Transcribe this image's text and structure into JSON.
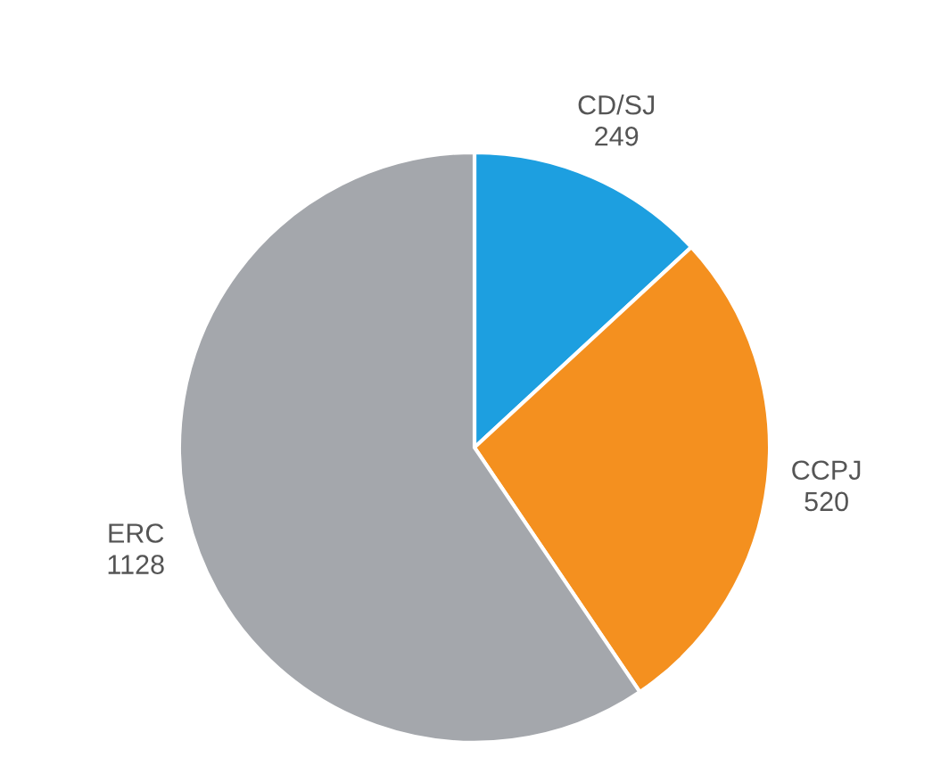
{
  "chart_data": {
    "type": "pie",
    "categories": [
      "CD/SJ",
      "CCPJ",
      "ERC"
    ],
    "values": [
      249,
      520,
      1128
    ],
    "colors": [
      "#1d9fe0",
      "#f4901f",
      "#a4a7ac"
    ],
    "data_labels": true
  }
}
